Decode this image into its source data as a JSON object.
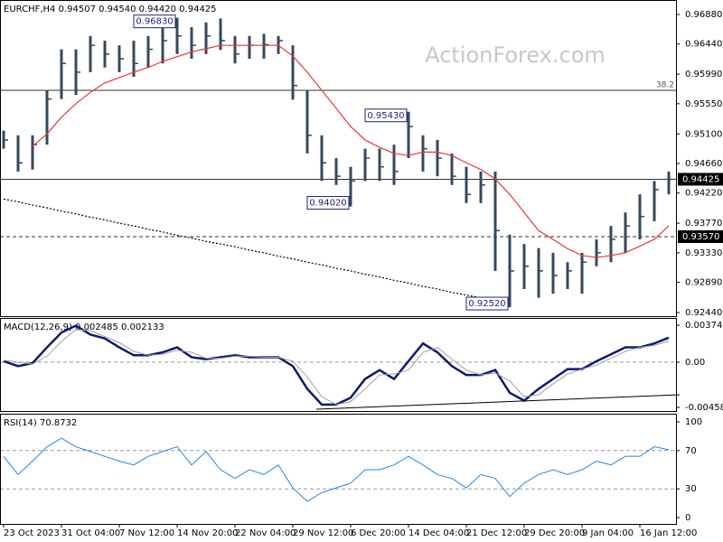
{
  "chart_data": [
    {
      "type": "hlc",
      "title": "EURCHF,H4  0.94507 0.94540 0.94420 0.94425",
      "watermark": "ActionForex.com",
      "color": "#34495e",
      "categories": [
        "23 Oct 2023",
        null,
        null,
        null,
        "31 Oct 04:00",
        null,
        null,
        null,
        "7 Nov 12:00",
        null,
        null,
        null,
        "14 Nov 20:00",
        null,
        null,
        null,
        "22 Nov 04:00",
        null,
        null,
        null,
        "29 Nov 12:00",
        null,
        null,
        null,
        "6 Dec 20:00",
        null,
        null,
        null,
        "14 Dec 04:00",
        null,
        null,
        null,
        "21 Dec 12:00",
        null,
        null,
        null,
        "29 Dec 20:00",
        null,
        null,
        null,
        "9 Jan 04:00",
        null,
        null,
        null,
        "16 Jan 12:00",
        null,
        null
      ],
      "high": [
        0.9515,
        0.9508,
        0.9508,
        0.9575,
        0.9636,
        0.9636,
        0.9656,
        0.9649,
        0.9642,
        0.9649,
        0.9656,
        0.9669,
        0.9683,
        0.9669,
        0.9676,
        0.9682,
        0.9656,
        0.9656,
        0.9659,
        0.9656,
        0.9642,
        0.9575,
        0.9508,
        0.9474,
        0.9461,
        0.9488,
        0.9488,
        0.9494,
        0.9543,
        0.9508,
        0.9501,
        0.9481,
        0.9461,
        0.9454,
        0.9454,
        0.936,
        0.9346,
        0.934,
        0.9333,
        0.9319,
        0.9333,
        0.9353,
        0.9373,
        0.9393,
        0.942,
        0.944,
        0.9454
      ],
      "low": [
        0.9488,
        0.9454,
        0.9457,
        0.9494,
        0.9562,
        0.9568,
        0.9602,
        0.9609,
        0.9602,
        0.9595,
        0.9609,
        0.9615,
        0.9629,
        0.9622,
        0.9629,
        0.9635,
        0.9615,
        0.9622,
        0.9622,
        0.9629,
        0.9561,
        0.9481,
        0.944,
        0.9434,
        0.9402,
        0.944,
        0.944,
        0.9434,
        0.9474,
        0.9454,
        0.9447,
        0.9434,
        0.9407,
        0.9407,
        0.9306,
        0.9252,
        0.9279,
        0.9266,
        0.9272,
        0.9279,
        0.9272,
        0.9313,
        0.9319,
        0.9333,
        0.9353,
        0.938,
        0.942
      ],
      "close": [
        0.9501,
        0.9467,
        0.9494,
        0.9562,
        0.9615,
        0.9602,
        0.9642,
        0.9629,
        0.9622,
        0.9615,
        0.9636,
        0.9649,
        0.9656,
        0.9642,
        0.9656,
        0.9649,
        0.9629,
        0.9642,
        0.9643,
        0.9649,
        0.9582,
        0.9508,
        0.9467,
        0.9447,
        0.944,
        0.9474,
        0.9461,
        0.9454,
        0.9521,
        0.9488,
        0.9474,
        0.9447,
        0.942,
        0.9434,
        0.9366,
        0.9306,
        0.9313,
        0.9306,
        0.9299,
        0.9306,
        0.9319,
        0.9333,
        0.9353,
        0.9373,
        0.9387,
        0.9427,
        0.94425
      ],
      "lines": [
        {
          "color": "#e53935",
          "dashed": false,
          "values": [
            null,
            null,
            0.9492,
            0.951,
            0.9535,
            0.9555,
            0.9572,
            0.9586,
            0.9594,
            0.9602,
            0.9609,
            0.9618,
            0.9625,
            0.9632,
            0.9637,
            0.9642,
            0.9642,
            0.9642,
            0.9642,
            0.9642,
            0.9626,
            0.9602,
            0.9575,
            0.9548,
            0.9521,
            0.9501,
            0.949,
            0.9481,
            0.9478,
            0.9483,
            0.9483,
            0.9478,
            0.9467,
            0.9457,
            0.9443,
            0.942,
            0.9393,
            0.9366,
            0.9353,
            0.9339,
            0.9329,
            0.9326,
            0.9329,
            0.9333,
            0.9343,
            0.9353,
            0.9373
          ]
        },
        {
          "color": "#000000",
          "dashed": true,
          "values": [
            0.9413,
            0.9409,
            0.9404,
            0.94,
            0.9395,
            0.9391,
            0.9386,
            0.9382,
            0.9377,
            0.9373,
            0.9368,
            0.9364,
            0.9359,
            0.9355,
            0.935,
            0.9346,
            0.9342,
            0.9337,
            0.9333,
            0.9328,
            0.9324,
            0.9319,
            0.9315,
            0.931,
            0.9306,
            0.9301,
            0.9297,
            0.9292,
            0.9288,
            0.9283,
            0.9279,
            0.9274,
            0.927,
            0.9266,
            0.9261,
            null,
            null,
            null,
            null,
            null,
            null,
            null,
            null,
            null,
            null,
            null,
            null
          ]
        }
      ],
      "hlines": [
        {
          "value": 0.95749,
          "label": "38.2",
          "style": "fib"
        },
        {
          "value": 0.94425,
          "label": "0.94425",
          "style": "price"
        },
        {
          "value": 0.9357,
          "label": "0.93570",
          "style": "level"
        }
      ],
      "annotations": [
        {
          "value": 0.9683,
          "label": "0.96830"
        },
        {
          "value": 0.9543,
          "label": "0.95430"
        },
        {
          "value": 0.9402,
          "label": "0.94020"
        },
        {
          "value": 0.9252,
          "label": "0.92520"
        }
      ],
      "ylim": [
        0.92386,
        0.97095
      ],
      "yticks": [
        {
          "value": 0.9688,
          "label": "0.96880"
        },
        {
          "value": 0.9644,
          "label": "0.96440"
        },
        {
          "value": 0.9599,
          "label": "0.95990"
        },
        {
          "value": 0.9555,
          "label": "0.95550"
        },
        {
          "value": 0.951,
          "label": "0.95100"
        },
        {
          "value": 0.9466,
          "label": "0.94660"
        },
        {
          "value": 0.9422,
          "label": "0.94220"
        },
        {
          "value": 0.9377,
          "label": "0.93770"
        },
        {
          "value": 0.9333,
          "label": "0.93330"
        },
        {
          "value": 0.9289,
          "label": "0.92890"
        },
        {
          "value": 0.9244,
          "label": "0.92440"
        }
      ]
    },
    {
      "type": "line",
      "title": "MACD(12,26,9) 0.002485 0.002133",
      "series": [
        {
          "color": "#0d1b6e",
          "width": 2.5,
          "values": [
            0.0001,
            -0.0004,
            -0.0001,
            0.0015,
            0.003,
            0.0037,
            0.0028,
            0.0024,
            0.0015,
            0.0007,
            0.0007,
            0.001,
            0.0015,
            0.0005,
            0.0003,
            0.0005,
            0.0007,
            0.0005,
            0.0005,
            0.0005,
            -0.0004,
            -0.0027,
            -0.0043,
            -0.0043,
            -0.0036,
            -0.0017,
            -0.0008,
            -0.0017,
            0.0001,
            0.0019,
            0.001,
            -0.0004,
            -0.0013,
            -0.0013,
            -0.0008,
            -0.0031,
            -0.0039,
            -0.0027,
            -0.0017,
            -0.0007,
            -0.0007,
            0.0001,
            0.0008,
            0.0015,
            0.0015,
            0.0019,
            0.002485
          ]
        },
        {
          "color": "#a0a0a0",
          "width": 1,
          "values": [
            0.0002,
            0.0,
            -0.0002,
            0.0006,
            0.0021,
            0.0033,
            0.0032,
            0.0026,
            0.002,
            0.0011,
            0.0007,
            0.0008,
            0.0012,
            0.001,
            0.0004,
            0.0004,
            0.0006,
            0.0006,
            0.0005,
            0.0005,
            0.0001,
            -0.0015,
            -0.0035,
            -0.0043,
            -0.004,
            -0.0027,
            -0.0013,
            -0.0012,
            -0.0008,
            0.001,
            0.0015,
            0.0003,
            -0.0008,
            -0.0013,
            -0.0011,
            -0.0019,
            -0.0035,
            -0.0033,
            -0.0022,
            -0.0012,
            -0.0007,
            -0.0003,
            0.0004,
            0.0011,
            0.0015,
            0.0017,
            0.002133
          ]
        }
      ],
      "hlines": [
        {
          "value": 0
        }
      ],
      "ylim": [
        -0.00495,
        0.00448
      ],
      "yticks": [
        0.003743,
        {
          "value": 0,
          "label": "0.00"
        },
        -0.004585
      ]
    },
    {
      "type": "line",
      "title": "RSI(14) 70.8732",
      "series": [
        {
          "color": "#1e88e5",
          "width": 1,
          "values": [
            64,
            45,
            59,
            74,
            83,
            74,
            69,
            64,
            59,
            55,
            64,
            69,
            74,
            55,
            69,
            50,
            41,
            50,
            45,
            55,
            31,
            17,
            26,
            31,
            36,
            50,
            50,
            55,
            64,
            55,
            45,
            41,
            31,
            45,
            41,
            22,
            36,
            45,
            50,
            45,
            50,
            59,
            55,
            64,
            64,
            74,
            70.87
          ]
        }
      ],
      "hlines": [
        {
          "value": 70
        },
        {
          "value": 30
        }
      ],
      "ylim": [
        -6.6,
        108.5
      ],
      "yticks": [
        100,
        70,
        30,
        0
      ]
    }
  ]
}
